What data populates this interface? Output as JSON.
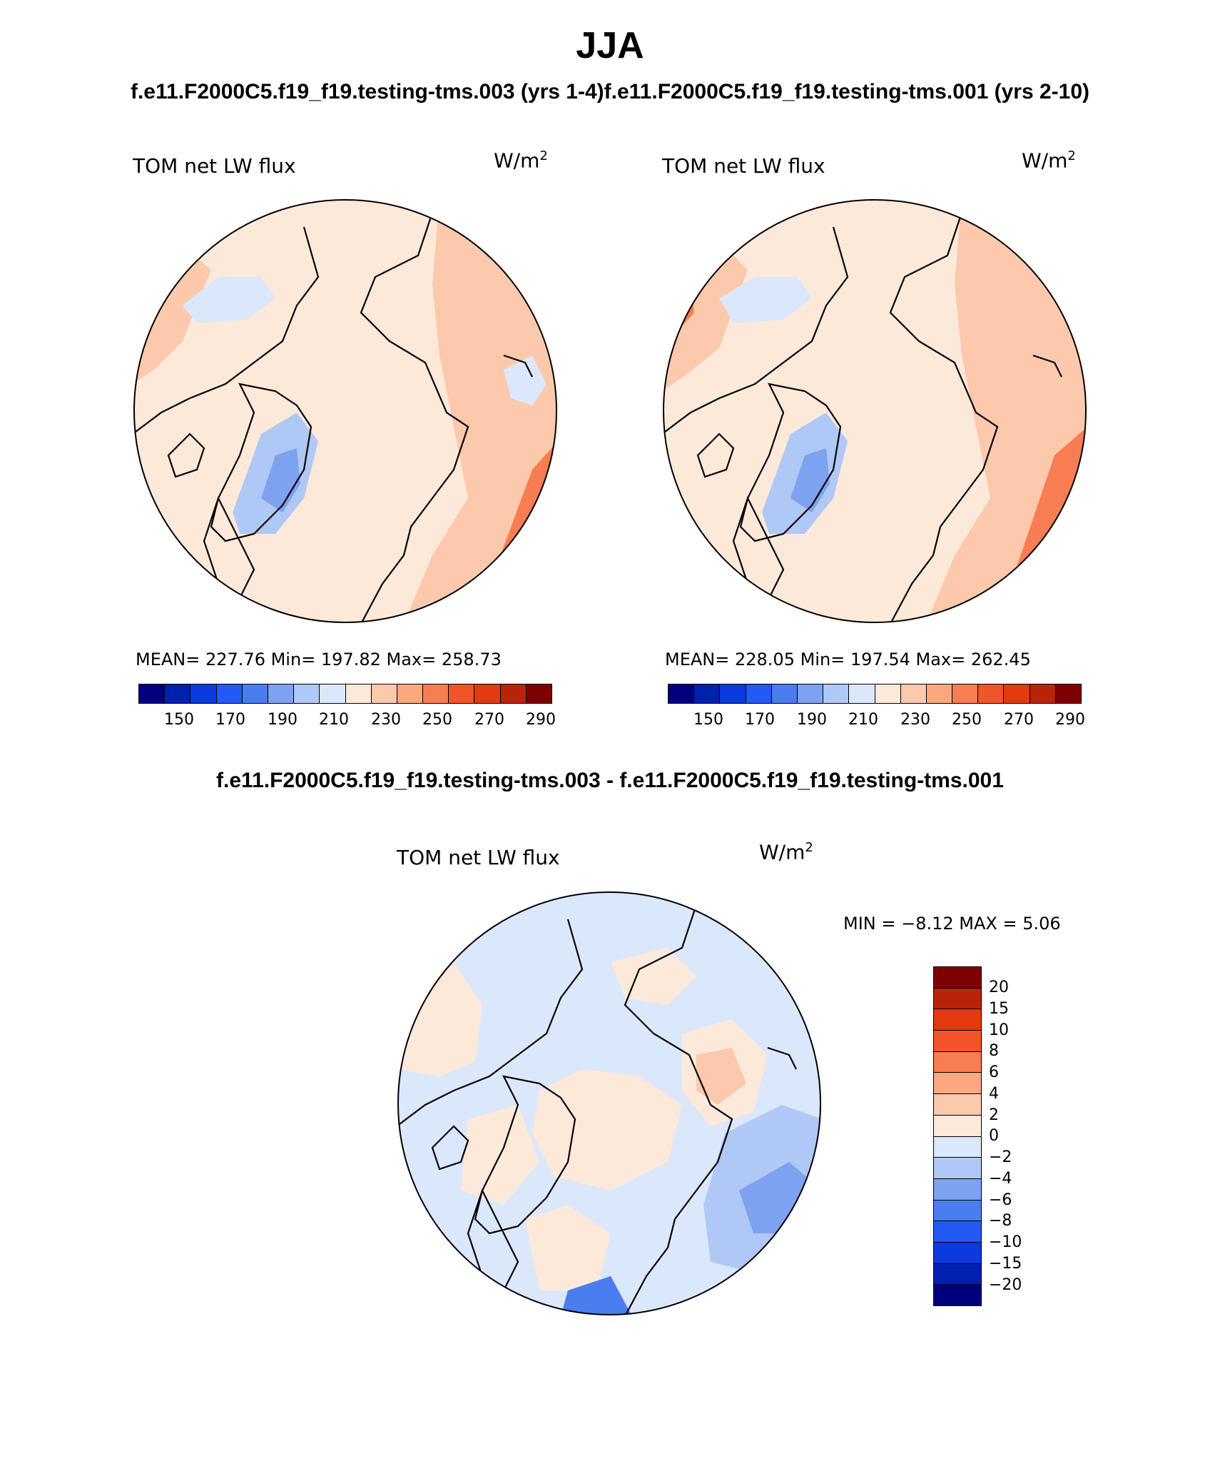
{
  "page": {
    "season": "JJA",
    "cases_line": "f.e11.F2000C5.f19_f19.testing-tms.003 (yrs 1-4)f.e11.F2000C5.f19_f19.testing-tms.001 (yrs 2-10)",
    "diff_title": "f.e11.F2000C5.f19_f19.testing-tms.003 - f.e11.F2000C5.f19_f19.testing-tms.001"
  },
  "panels": [
    {
      "variable": "TOM net LW flux",
      "units_base": "W/m",
      "units_exp": "2",
      "stats": "MEAN= 227.76   Min= 197.82   Max= 258.73"
    },
    {
      "variable": "TOM net LW flux",
      "units_base": "W/m",
      "units_exp": "2",
      "stats": "MEAN= 228.05   Min= 197.54   Max= 262.45"
    },
    {
      "variable": "TOM net LW flux",
      "units_base": "W/m",
      "units_exp": "2",
      "stats": "MIN =  −8.12 MAX =    5.06"
    }
  ],
  "colorbar_abs": {
    "labels": [
      "150",
      "170",
      "190",
      "210",
      "230",
      "250",
      "270",
      "290"
    ],
    "colors": [
      "#00007f",
      "#0020b0",
      "#0a3ae0",
      "#2459f5",
      "#4a7df0",
      "#7da2f0",
      "#b0c8f5",
      "#dbe8fb",
      "#fde9da",
      "#fcc9ad",
      "#fba780",
      "#f87d52",
      "#f4542a",
      "#e33a12",
      "#b8230a",
      "#7f0000"
    ]
  },
  "colorbar_diff": {
    "labels": [
      "20",
      "15",
      "10",
      "8",
      "6",
      "4",
      "2",
      "0",
      "−2",
      "−4",
      "−6",
      "−8",
      "−10",
      "−15",
      "−20"
    ],
    "colors": [
      "#7f0000",
      "#b8230a",
      "#e33a12",
      "#f4542a",
      "#f87d52",
      "#fba780",
      "#fcc9ad",
      "#fde9da",
      "#dbe8fb",
      "#b0c8f5",
      "#7da2f0",
      "#4a7df0",
      "#2459f5",
      "#0a3ae0",
      "#0020b0",
      "#00007f"
    ]
  }
}
